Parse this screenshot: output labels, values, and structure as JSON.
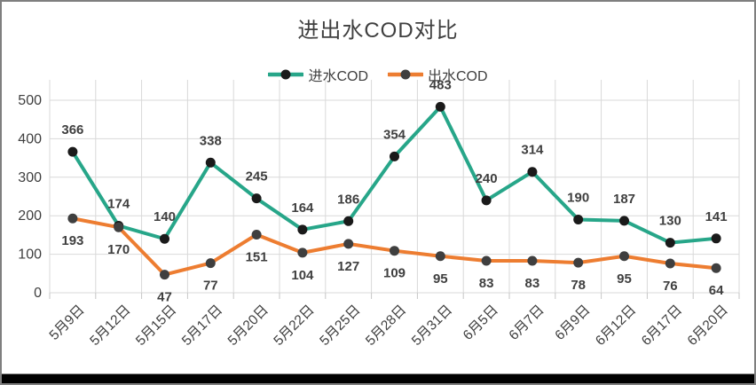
{
  "frame": {
    "background": "#FFFFFF",
    "border_color": "#7F7F7F",
    "bottom_bar_color": "#000000"
  },
  "chart_data": {
    "type": "line",
    "title": "进出水COD对比",
    "categories": [
      "5月9日",
      "5月12日",
      "5月15日",
      "5月17日",
      "5月20日",
      "5月22日",
      "5月25日",
      "5月28日",
      "5月31日",
      "6月5日",
      "6月7日",
      "6月9日",
      "6月12日",
      "6月17日",
      "6月20日"
    ],
    "series": [
      {
        "name": "进水COD",
        "color": "#27A689",
        "marker_color": "#1A1A1A",
        "label_position": "above",
        "values": [
          366,
          174,
          140,
          338,
          245,
          164,
          186,
          354,
          483,
          240,
          314,
          190,
          187,
          130,
          141
        ]
      },
      {
        "name": "出水COD",
        "color": "#ED7D31",
        "marker_color": "#3F3F3F",
        "label_position": "below",
        "values": [
          193,
          170,
          47,
          77,
          151,
          104,
          127,
          109,
          95,
          83,
          83,
          78,
          95,
          76,
          64
        ]
      }
    ],
    "ylim": [
      0,
      500
    ],
    "yticks": [
      0,
      100,
      200,
      300,
      400,
      500
    ],
    "grid": true,
    "grid_color": "#D9D9D9",
    "text_color": "#3F3F3F",
    "legend_position": "top",
    "xlabel": "",
    "ylabel": ""
  }
}
